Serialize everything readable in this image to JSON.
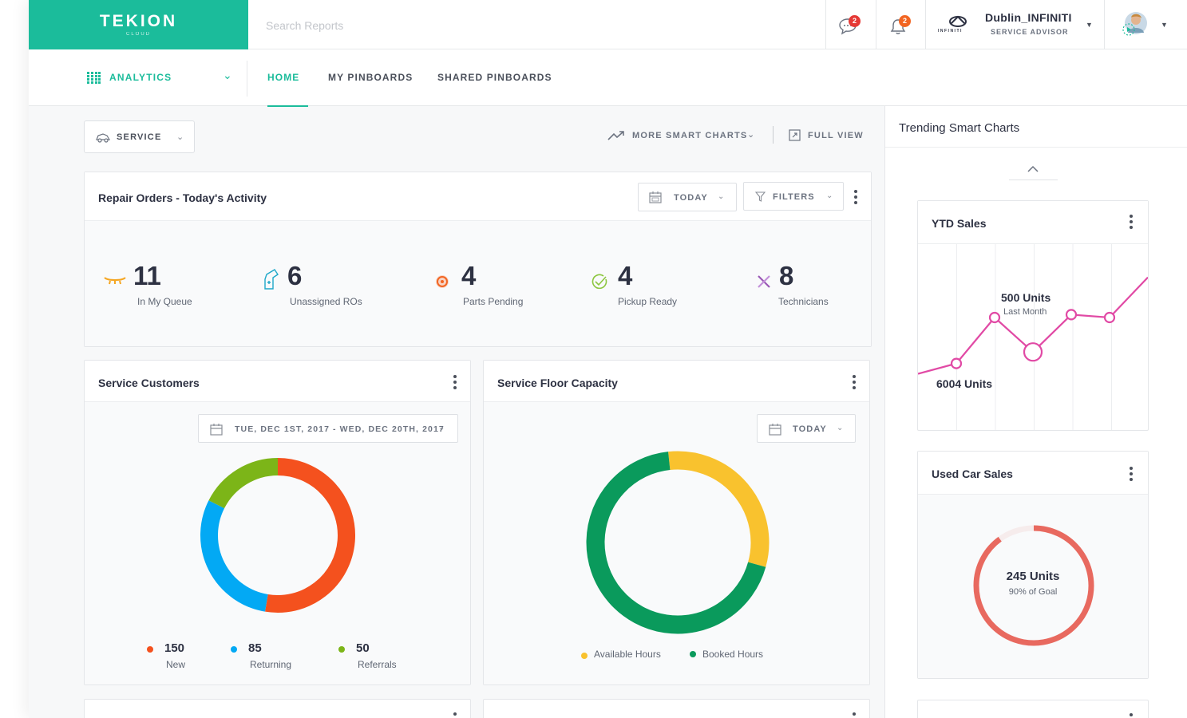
{
  "brand": {
    "name": "TEKION",
    "sub": "CLOUD"
  },
  "search": {
    "placeholder": "Search Reports"
  },
  "notifications": {
    "messages_count": "2",
    "alerts_count": "2"
  },
  "dealer": {
    "brand_text": "INFINITI",
    "name": "Dublin_INFINITI",
    "role": "SERVICE ADVISOR"
  },
  "nav": {
    "module": "ANALYTICS",
    "tabs": [
      {
        "label": "HOME",
        "active": true
      },
      {
        "label": "MY PINBOARDS",
        "active": false
      },
      {
        "label": "SHARED PINBOARDS",
        "active": false
      }
    ]
  },
  "toolbar": {
    "department": "SERVICE",
    "more_charts": "MORE SMART CHARTS",
    "full_view": "FULL VIEW"
  },
  "repair_orders": {
    "title": "Repair Orders - Today's Activity",
    "date_filter": "TODAY",
    "filters_label": "FILTERS",
    "stats": [
      {
        "value": "11",
        "label": "In My Queue",
        "icon": "queue-icon",
        "color": "#f5a623"
      },
      {
        "value": "6",
        "label": "Unassigned ROs",
        "icon": "unassigned-icon",
        "color": "#1fa8c9"
      },
      {
        "value": "4",
        "label": "Parts Pending",
        "icon": "parts-icon",
        "color": "#f26522"
      },
      {
        "value": "4",
        "label": "Pickup Ready",
        "icon": "pickup-check-icon",
        "color": "#8cc63f"
      },
      {
        "value": "8",
        "label": "Technicians",
        "icon": "tools-icon",
        "color": "#9b59b6"
      }
    ]
  },
  "service_customers": {
    "title": "Service Customers",
    "date_range": "TUE, DEC 1ST, 2017 - WED, DEC 20TH, 2017",
    "legend": [
      {
        "value": "150",
        "label": "New",
        "color": "#f4511e"
      },
      {
        "value": "85",
        "label": "Returning",
        "color": "#03a9f4"
      },
      {
        "value": "50",
        "label": "Referrals",
        "color": "#7cb518"
      }
    ]
  },
  "service_floor": {
    "title": "Service Floor Capacity",
    "date_filter": "TODAY",
    "legend": [
      {
        "label": "Available Hours",
        "color": "#f9c22e"
      },
      {
        "label": "Booked Hours",
        "color": "#0a9a5c"
      }
    ]
  },
  "trending": {
    "title": "Trending Smart Charts",
    "ytd": {
      "title": "YTD Sales",
      "highlight": "500 Units",
      "highlight_sub": "Last Month",
      "left_label": "6004 Units"
    },
    "used_car": {
      "title": "Used Car Sales",
      "value": "245 Units",
      "sub": "90% of Goal",
      "percent": 90
    }
  },
  "chart_data": [
    {
      "type": "pie",
      "title": "Service Customers",
      "categories": [
        "New",
        "Returning",
        "Referrals"
      ],
      "values": [
        150,
        85,
        50
      ],
      "colors": [
        "#f4511e",
        "#03a9f4",
        "#7cb518"
      ]
    },
    {
      "type": "pie",
      "title": "Service Floor Capacity",
      "categories": [
        "Available Hours",
        "Booked Hours"
      ],
      "values": [
        31,
        69
      ],
      "colors": [
        "#f9c22e",
        "#0a9a5c"
      ]
    },
    {
      "type": "line",
      "title": "YTD Sales",
      "x": [
        1,
        2,
        3,
        4,
        5,
        6,
        7
      ],
      "series": [
        {
          "values": [
            6004,
            6040,
            6200,
            6080,
            6210,
            6200,
            6340
          ]
        }
      ],
      "highlight_index": 3
    }
  ]
}
